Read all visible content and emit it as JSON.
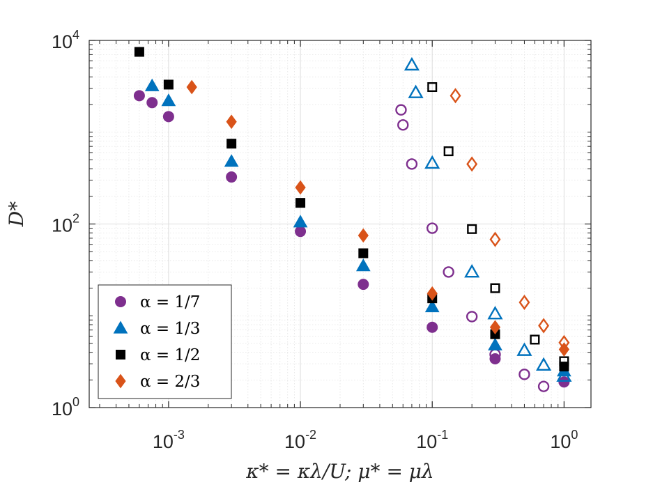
{
  "chart_data": {
    "type": "scatter",
    "title": "",
    "xlabel": "κ* = κλ/U;  μ* = μλ",
    "ylabel": "D*",
    "xscale": "log",
    "yscale": "log",
    "xlim": [
      0.00025,
      1.6
    ],
    "ylim": [
      1,
      10000
    ],
    "grid": "major-and-minor",
    "legend_position": "bottom-left",
    "x_ticks": [
      {
        "value": 0.001,
        "base": "10",
        "exp": "-3"
      },
      {
        "value": 0.01,
        "base": "10",
        "exp": "-2"
      },
      {
        "value": 0.1,
        "base": "10",
        "exp": "-1"
      },
      {
        "value": 1,
        "base": "10",
        "exp": "0"
      }
    ],
    "y_ticks": [
      {
        "value": 1,
        "base": "10",
        "exp": "0"
      },
      {
        "value": 100,
        "base": "10",
        "exp": "2"
      },
      {
        "value": 10000,
        "base": "10",
        "exp": "4"
      }
    ],
    "series": [
      {
        "name": "α = 1/7",
        "marker": "circle",
        "color": "#7E2F8E",
        "filled": [
          [
            0.0006,
            2500
          ],
          [
            0.00075,
            2100
          ],
          [
            0.001,
            1480
          ],
          [
            0.003,
            325
          ],
          [
            0.01,
            83
          ],
          [
            0.03,
            22
          ],
          [
            0.1,
            7.5
          ],
          [
            0.3,
            3.4
          ],
          [
            1,
            1.9
          ]
        ],
        "open": [
          [
            0.058,
            1750
          ],
          [
            0.06,
            1200
          ],
          [
            0.07,
            450
          ],
          [
            0.1,
            90
          ],
          [
            0.133,
            30
          ],
          [
            0.2,
            9.8
          ],
          [
            0.3,
            3.8
          ],
          [
            0.5,
            2.3
          ],
          [
            0.7,
            1.7
          ]
        ]
      },
      {
        "name": "α = 1/3",
        "marker": "triangle",
        "color": "#0072BD",
        "filled": [
          [
            0.00075,
            3200
          ],
          [
            0.001,
            2200
          ],
          [
            0.003,
            480
          ],
          [
            0.01,
            105
          ],
          [
            0.03,
            35
          ],
          [
            0.1,
            12.5
          ],
          [
            0.3,
            4.8
          ],
          [
            1,
            2.5
          ]
        ],
        "open": [
          [
            0.07,
            5400
          ],
          [
            0.075,
            2700
          ],
          [
            0.1,
            460
          ],
          [
            0.2,
            30
          ],
          [
            0.3,
            10.5
          ],
          [
            0.5,
            4.2
          ],
          [
            0.7,
            2.9
          ],
          [
            1,
            2.2
          ]
        ]
      },
      {
        "name": "α = 1/2",
        "marker": "square",
        "color": "#000000",
        "filled": [
          [
            0.0006,
            7500
          ],
          [
            0.001,
            3300
          ],
          [
            0.003,
            750
          ],
          [
            0.01,
            170
          ],
          [
            0.03,
            48
          ],
          [
            0.1,
            15.5
          ],
          [
            0.3,
            6.3
          ],
          [
            1,
            2.8
          ]
        ],
        "open": [
          [
            0.1,
            3100
          ],
          [
            0.133,
            620
          ],
          [
            0.2,
            88
          ],
          [
            0.3,
            20
          ],
          [
            0.6,
            5.5
          ],
          [
            1,
            3.2
          ]
        ]
      },
      {
        "name": "α = 2/3",
        "marker": "diamond",
        "color": "#D95319",
        "filled": [
          [
            0.0015,
            3100
          ],
          [
            0.003,
            1300
          ],
          [
            0.01,
            250
          ],
          [
            0.03,
            75
          ],
          [
            0.1,
            17.5
          ],
          [
            0.3,
            7.5
          ],
          [
            1,
            4.3
          ]
        ],
        "open": [
          [
            0.15,
            2500
          ],
          [
            0.2,
            450
          ],
          [
            0.3,
            68
          ],
          [
            0.5,
            14
          ],
          [
            0.7,
            7.8
          ],
          [
            1,
            5.1
          ]
        ]
      }
    ]
  }
}
